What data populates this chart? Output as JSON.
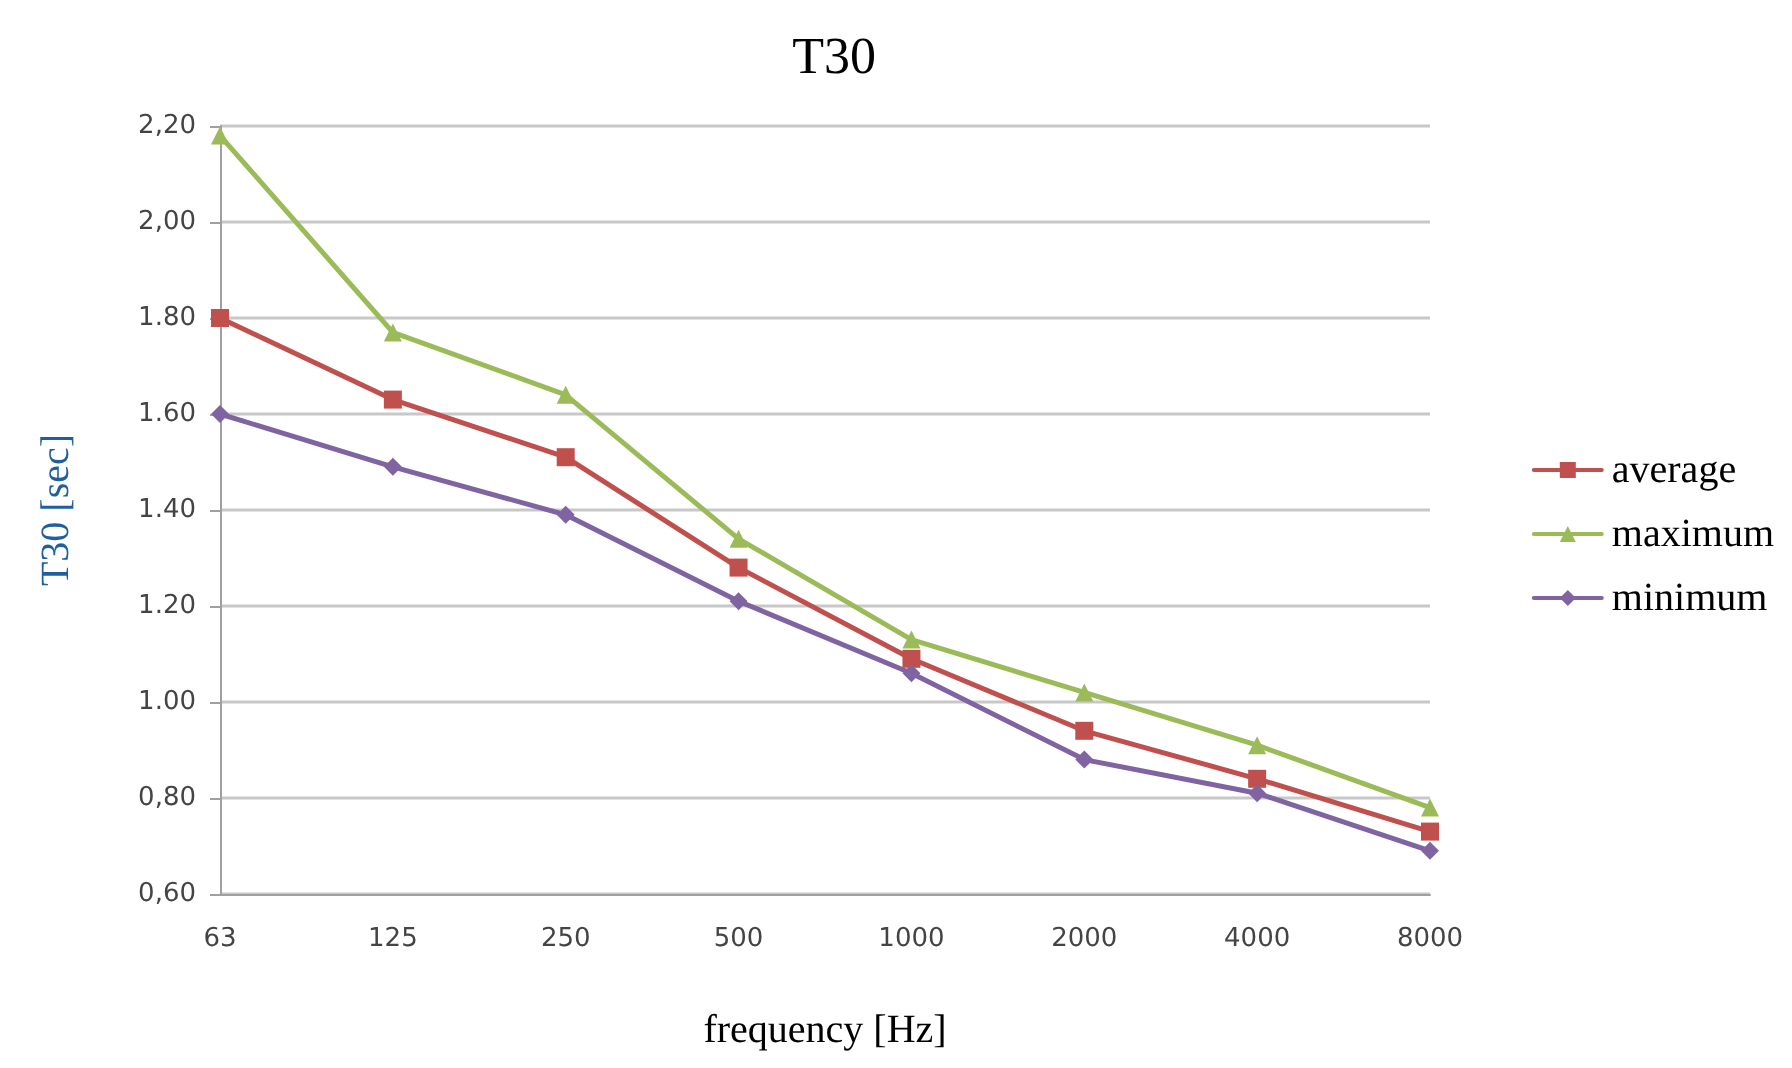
{
  "chart_data": {
    "type": "line",
    "title": "T30",
    "xlabel": "frequency [Hz]",
    "ylabel": "T30 [sec]",
    "categories": [
      "63",
      "125",
      "250",
      "500",
      "1000",
      "2000",
      "4000",
      "8000"
    ],
    "series": [
      {
        "name": "average",
        "color": "#c0504d",
        "marker": "square",
        "values": [
          1.8,
          1.63,
          1.51,
          1.28,
          1.09,
          0.94,
          0.84,
          0.73
        ]
      },
      {
        "name": "maximum",
        "color": "#9bbb59",
        "marker": "triangle",
        "values": [
          2.18,
          1.77,
          1.64,
          1.34,
          1.13,
          1.02,
          0.91,
          0.78
        ]
      },
      {
        "name": "minimum",
        "color": "#8064a2",
        "marker": "diamond",
        "values": [
          1.6,
          1.49,
          1.39,
          1.21,
          1.06,
          0.88,
          0.81,
          0.69
        ]
      }
    ],
    "ylim": [
      0.6,
      2.2
    ],
    "yticks": [
      {
        "value": 0.6,
        "label": "0,60"
      },
      {
        "value": 0.8,
        "label": "0,80"
      },
      {
        "value": 1.0,
        "label": "1.00"
      },
      {
        "value": 1.2,
        "label": "1.20"
      },
      {
        "value": 1.4,
        "label": "1.40"
      },
      {
        "value": 1.6,
        "label": "1.60"
      },
      {
        "value": 1.8,
        "label": "1.80"
      },
      {
        "value": 2.0,
        "label": "2,00"
      },
      {
        "value": 2.2,
        "label": "2,20"
      }
    ],
    "grid": "y",
    "legend": "right",
    "line_style": "solid"
  }
}
